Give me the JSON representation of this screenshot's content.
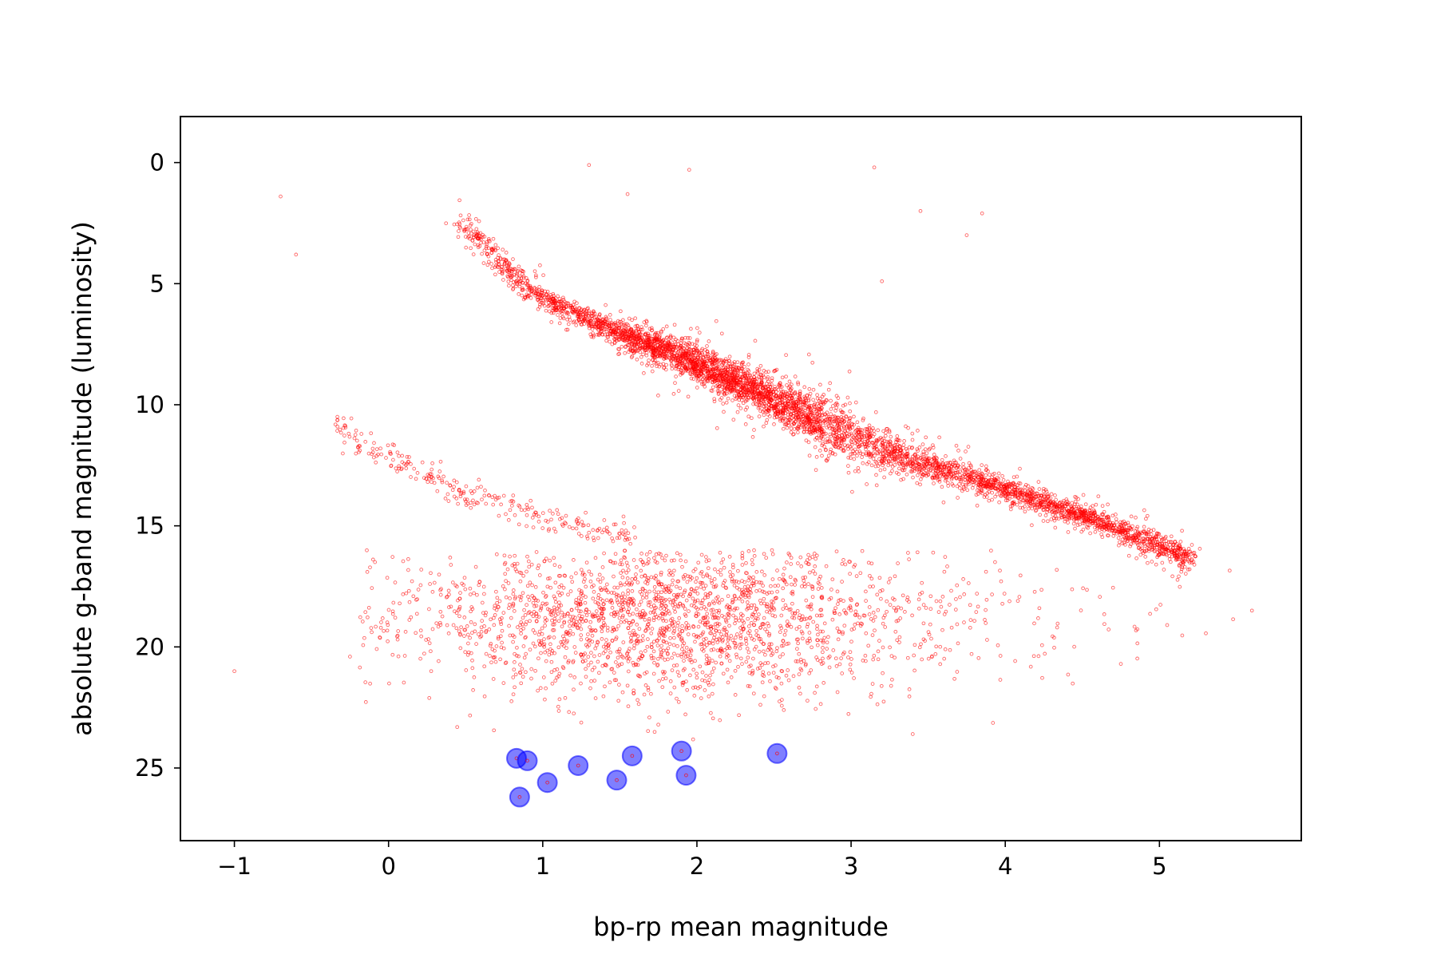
{
  "chart_data": {
    "type": "scatter",
    "xlabel": "bp-rp mean magnitude",
    "ylabel": "absolute g-band magnitude (luminosity)",
    "xlim": [
      -1.35,
      5.92
    ],
    "ylim": [
      28.0,
      -1.9
    ],
    "y_inverted": true,
    "grid": false,
    "legend": "none",
    "x_ticks": [
      -1,
      0,
      1,
      2,
      3,
      4,
      5
    ],
    "x_tick_labels": [
      "−1",
      "0",
      "1",
      "2",
      "3",
      "4",
      "5"
    ],
    "y_ticks": [
      0,
      5,
      10,
      15,
      20,
      25
    ],
    "y_tick_labels": [
      "0",
      "5",
      "10",
      "15",
      "20",
      "25"
    ],
    "series": [
      {
        "color": "#ff0000",
        "marker": "small-hollow-dot",
        "approx_point_count": 7000,
        "components": [
          {
            "kind": "main-sequence",
            "ridge": [
              [
                0.45,
                2.5
              ],
              [
                0.6,
                3.2
              ],
              [
                0.75,
                4.3
              ],
              [
                0.9,
                5.2
              ],
              [
                1.1,
                5.9
              ],
              [
                1.3,
                6.5
              ],
              [
                1.6,
                7.3
              ],
              [
                1.9,
                8.0
              ],
              [
                2.2,
                8.9
              ],
              [
                2.5,
                9.8
              ],
              [
                2.8,
                10.7
              ],
              [
                3.1,
                11.6
              ],
              [
                3.4,
                12.3
              ],
              [
                3.7,
                12.9
              ],
              [
                4.0,
                13.5
              ],
              [
                4.3,
                14.2
              ],
              [
                4.6,
                14.8
              ],
              [
                4.9,
                15.6
              ],
              [
                5.2,
                16.3
              ]
            ],
            "spread": 0.35
          },
          {
            "kind": "white-dwarf-sequence",
            "ridge": [
              [
                -0.35,
                10.8
              ],
              [
                -0.1,
                11.8
              ],
              [
                0.2,
                12.8
              ],
              [
                0.5,
                13.6
              ],
              [
                0.8,
                14.3
              ],
              [
                1.1,
                14.8
              ],
              [
                1.4,
                15.2
              ],
              [
                1.6,
                15.5
              ]
            ],
            "spread": 0.3
          },
          {
            "kind": "diffuse-cloud",
            "center": [
              1.8,
              18.8
            ],
            "spread": [
              0.8,
              1.6
            ],
            "x_range": [
              -0.2,
              5.6
            ],
            "y_range": [
              16.0,
              24.0
            ]
          },
          {
            "kind": "outliers",
            "points": [
              [
                -0.7,
                1.4
              ],
              [
                -0.6,
                3.8
              ],
              [
                1.3,
                0.1
              ],
              [
                1.95,
                0.3
              ],
              [
                3.15,
                0.2
              ],
              [
                3.45,
                2.0
              ],
              [
                3.85,
                2.1
              ],
              [
                3.75,
                3.0
              ],
              [
                1.55,
                1.3
              ],
              [
                3.2,
                4.9
              ],
              [
                -1.0,
                21.0
              ],
              [
                -0.25,
                20.4
              ],
              [
                5.6,
                18.5
              ],
              [
                5.05,
                19.1
              ],
              [
                4.75,
                20.7
              ],
              [
                3.4,
                23.6
              ]
            ]
          }
        ]
      },
      {
        "color": "#0000ff",
        "marker": "large-circle",
        "values": [
          [
            0.83,
            24.6
          ],
          [
            0.9,
            24.7
          ],
          [
            0.85,
            26.2
          ],
          [
            1.03,
            25.6
          ],
          [
            1.23,
            24.9
          ],
          [
            1.48,
            25.5
          ],
          [
            1.58,
            24.5
          ],
          [
            1.9,
            24.3
          ],
          [
            1.93,
            25.3
          ],
          [
            2.52,
            24.4
          ]
        ]
      }
    ]
  }
}
